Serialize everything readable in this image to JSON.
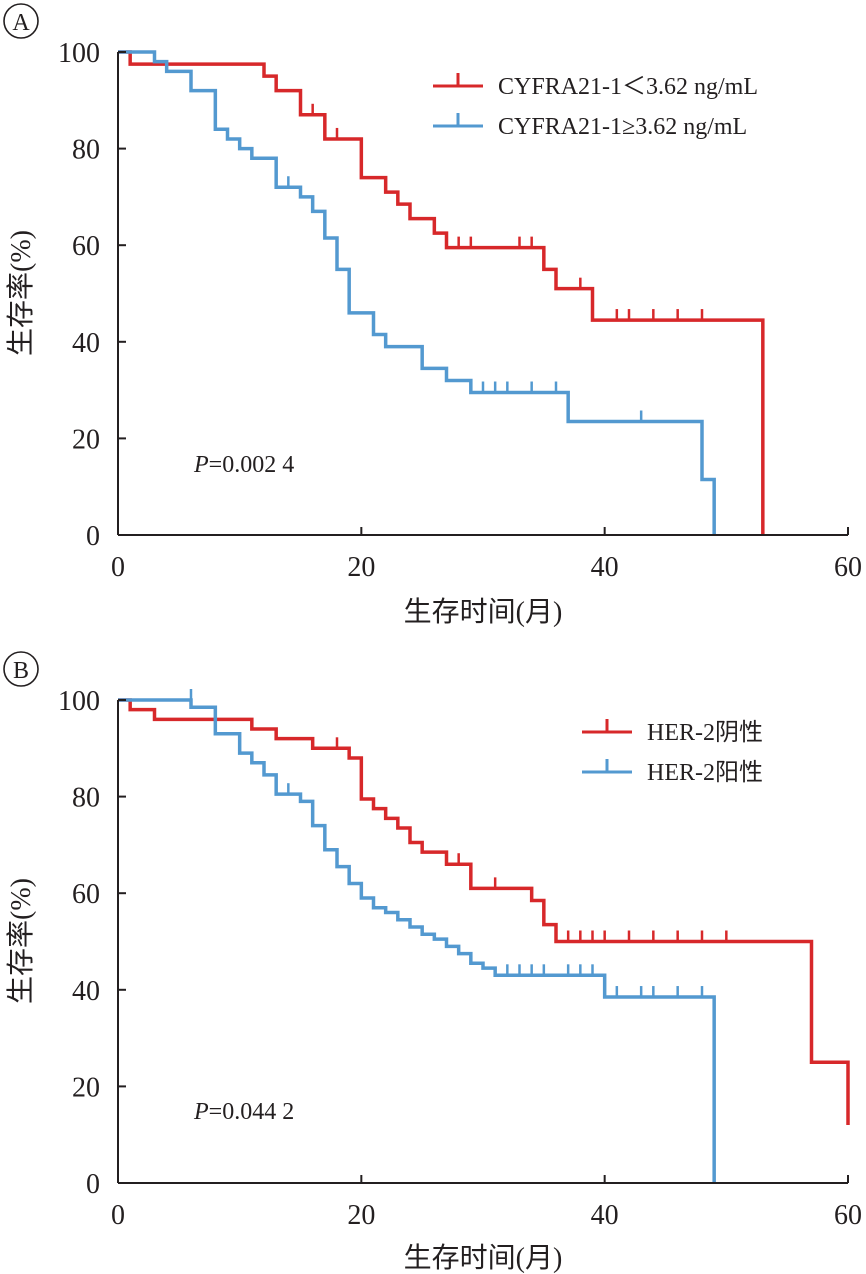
{
  "chart_data": [
    {
      "type": "line",
      "panel_label": "A",
      "xlabel": "生存时间(月)",
      "ylabel": "生存率(%)",
      "xlim": [
        0,
        60
      ],
      "ylim": [
        0,
        100
      ],
      "xticks": [
        0,
        20,
        40,
        60
      ],
      "yticks": [
        0,
        20,
        40,
        60,
        80,
        100
      ],
      "annotation_italic": "P",
      "annotation_rest": "=0.002 4",
      "legend_position": "top-right",
      "series": [
        {
          "name": "CYFRA21-1＜3.62 ng/mL",
          "color": "#d7282a",
          "steps": [
            [
              0,
              100
            ],
            [
              1,
              97.5
            ],
            [
              12,
              95
            ],
            [
              13,
              92
            ],
            [
              15,
              87
            ],
            [
              17,
              82
            ],
            [
              20,
              74
            ],
            [
              22,
              71
            ],
            [
              23,
              68.5
            ],
            [
              24,
              65.5
            ],
            [
              26,
              62.5
            ],
            [
              27,
              59.5
            ],
            [
              35,
              55
            ],
            [
              36,
              51
            ],
            [
              39,
              44.5
            ],
            [
              53,
              0
            ]
          ],
          "end_x": 53,
          "censor": [
            [
              16,
              87
            ],
            [
              18,
              82
            ],
            [
              28,
              59.5
            ],
            [
              29,
              59.5
            ],
            [
              33,
              59.5
            ],
            [
              34,
              59.5
            ],
            [
              38,
              51
            ],
            [
              41,
              44.5
            ],
            [
              42,
              44.5
            ],
            [
              44,
              44.5
            ],
            [
              46,
              44.5
            ],
            [
              48,
              44.5
            ]
          ]
        },
        {
          "name": "CYFRA21-1≥3.62 ng/mL",
          "color": "#5399d0",
          "steps": [
            [
              0,
              100
            ],
            [
              3,
              98
            ],
            [
              4,
              96
            ],
            [
              6,
              92
            ],
            [
              8,
              84
            ],
            [
              9,
              82
            ],
            [
              10,
              80
            ],
            [
              11,
              78
            ],
            [
              13,
              72
            ],
            [
              15,
              70
            ],
            [
              16,
              67
            ],
            [
              17,
              61.5
            ],
            [
              18,
              55
            ],
            [
              19,
              46
            ],
            [
              21,
              41.5
            ],
            [
              22,
              39
            ],
            [
              25,
              34.5
            ],
            [
              27,
              32
            ],
            [
              29,
              29.5
            ],
            [
              37,
              23.5
            ],
            [
              48,
              11.5
            ],
            [
              49,
              0
            ]
          ],
          "end_x": 49,
          "censor": [
            [
              14,
              72
            ],
            [
              30,
              29.5
            ],
            [
              31,
              29.5
            ],
            [
              32,
              29.5
            ],
            [
              34,
              29.5
            ],
            [
              36,
              29.5
            ],
            [
              43,
              23.5
            ]
          ]
        }
      ]
    },
    {
      "type": "line",
      "panel_label": "B",
      "xlabel": "生存时间(月)",
      "ylabel": "生存率(%)",
      "xlim": [
        0,
        60
      ],
      "ylim": [
        0,
        100
      ],
      "xticks": [
        0,
        20,
        40,
        60
      ],
      "yticks": [
        0,
        20,
        40,
        60,
        80,
        100
      ],
      "annotation_italic": "P",
      "annotation_rest": "=0.044 2",
      "legend_position": "top-right",
      "series": [
        {
          "name": "HER-2阴性",
          "color": "#d7282a",
          "steps": [
            [
              0,
              100
            ],
            [
              1,
              98
            ],
            [
              3,
              96
            ],
            [
              11,
              94
            ],
            [
              13,
              92
            ],
            [
              16,
              90
            ],
            [
              19,
              88
            ],
            [
              20,
              79.5
            ],
            [
              21,
              77.5
            ],
            [
              22,
              75.5
            ],
            [
              23,
              73.5
            ],
            [
              24,
              70.5
            ],
            [
              25,
              68.5
            ],
            [
              27,
              66
            ],
            [
              29,
              61
            ],
            [
              33,
              61
            ],
            [
              34,
              58.5
            ],
            [
              35,
              53.5
            ],
            [
              36,
              50
            ],
            [
              57,
              25
            ],
            [
              60,
              12
            ]
          ],
          "end_x": 60,
          "censor": [
            [
              18,
              90
            ],
            [
              28,
              66
            ],
            [
              31,
              61
            ],
            [
              37,
              50
            ],
            [
              38,
              50
            ],
            [
              39,
              50
            ],
            [
              40,
              50
            ],
            [
              42,
              50
            ],
            [
              44,
              50
            ],
            [
              46,
              50
            ],
            [
              48,
              50
            ],
            [
              50,
              50
            ]
          ]
        },
        {
          "name": "HER-2阳性",
          "color": "#5399d0",
          "steps": [
            [
              0,
              100
            ],
            [
              6,
              98.5
            ],
            [
              8,
              93
            ],
            [
              10,
              89
            ],
            [
              11,
              87
            ],
            [
              12,
              84.5
            ],
            [
              13,
              80.5
            ],
            [
              15,
              79
            ],
            [
              16,
              74
            ],
            [
              17,
              69
            ],
            [
              18,
              65.5
            ],
            [
              19,
              62
            ],
            [
              20,
              59
            ],
            [
              21,
              57
            ],
            [
              22,
              56
            ],
            [
              23,
              54.5
            ],
            [
              24,
              53
            ],
            [
              25,
              51.5
            ],
            [
              26,
              50.5
            ],
            [
              27,
              49
            ],
            [
              28,
              47.5
            ],
            [
              29,
              45.5
            ],
            [
              30,
              44.5
            ],
            [
              31,
              43
            ],
            [
              40,
              38.5
            ],
            [
              49,
              0
            ]
          ],
          "end_x": 49,
          "censor": [
            [
              6,
              100
            ],
            [
              14,
              80.5
            ],
            [
              32,
              43
            ],
            [
              33,
              43
            ],
            [
              34,
              43
            ],
            [
              35,
              43
            ],
            [
              37,
              43
            ],
            [
              38,
              43
            ],
            [
              39,
              43
            ],
            [
              41,
              38.5
            ],
            [
              43,
              38.5
            ],
            [
              44,
              38.5
            ],
            [
              46,
              38.5
            ],
            [
              48,
              38.5
            ]
          ]
        }
      ]
    }
  ]
}
